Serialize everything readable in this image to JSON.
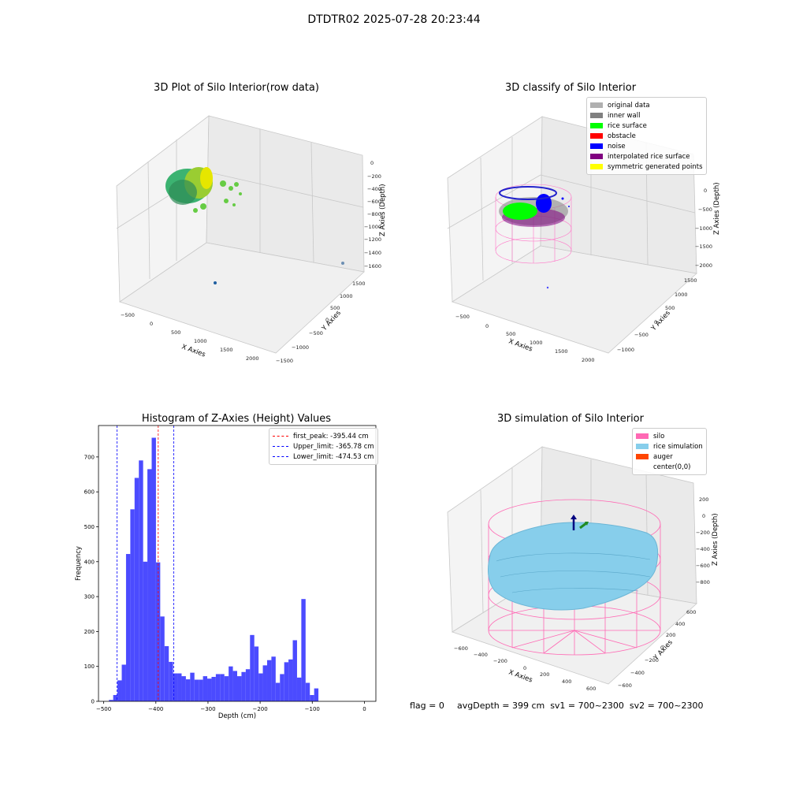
{
  "figure": {
    "suptitle": "DTDTR02 2025-07-28 20:23:44"
  },
  "panels": {
    "raw": {
      "title": "3D Plot of Silo Interior(row data)",
      "xlabel": "X Axies",
      "ylabel": "Y Axies",
      "zlabel": "Z Axies (Depth)",
      "xticks": [
        "−500",
        "0",
        "500",
        "1000",
        "1500",
        "2000"
      ],
      "yticks": [
        "−1500",
        "−1000",
        "−500",
        "0",
        "500",
        "1000",
        "1500"
      ],
      "zticks": [
        "0",
        "−200",
        "−400",
        "−600",
        "−800",
        "−1000",
        "−1200",
        "−1400",
        "−1600"
      ]
    },
    "classify": {
      "title": "3D classify of Silo Interior",
      "xlabel": "X Axies",
      "ylabel": "Y Axies",
      "zlabel": "Z Axies (Depth)",
      "xticks": [
        "−500",
        "0",
        "500",
        "1000",
        "1500",
        "2000"
      ],
      "yticks": [
        "−1000",
        "−500",
        "0",
        "500",
        "1000",
        "1500"
      ],
      "zticks": [
        "0",
        "−500",
        "−1000",
        "−1500",
        "−2000"
      ],
      "legend": [
        {
          "label": "original data",
          "color": "#b0b0b0"
        },
        {
          "label": "inner wall",
          "color": "#808080"
        },
        {
          "label": "rice surface",
          "color": "#00ff00"
        },
        {
          "label": "obstacle",
          "color": "#ff0000"
        },
        {
          "label": "noise",
          "color": "#0000ff"
        },
        {
          "label": "interpolated rice surface",
          "color": "#800080"
        },
        {
          "label": "symmetric generated points",
          "color": "#ffff00"
        }
      ]
    },
    "simulation": {
      "title": "3D simulation of Silo Interior",
      "xlabel": "X Axies",
      "ylabel": "Y Axies",
      "zlabel": "Z Axies (Depth)",
      "xticks": [
        "−600",
        "−400",
        "−200",
        "0",
        "200",
        "400",
        "600"
      ],
      "yticks": [
        "−600",
        "−400",
        "−200",
        "0",
        "200",
        "400",
        "600"
      ],
      "zticks": [
        "200",
        "0",
        "−200",
        "−400",
        "−600",
        "−800"
      ],
      "legend": [
        {
          "label": "silo",
          "color": "#ff69b4"
        },
        {
          "label": "rice simulation",
          "color": "#87ceeb"
        },
        {
          "label": "auger",
          "color": "#ff4500"
        },
        {
          "label": "center(0,0)",
          "color": ""
        }
      ]
    }
  },
  "chart_data": [
    {
      "type": "bar",
      "title": "Histogram of Z-Axies (Height) Values",
      "xlabel": "Depth (cm)",
      "ylabel": "Frequency",
      "xlim": [
        -510,
        22
      ],
      "ylim": [
        0,
        790
      ],
      "xticks": [
        -500,
        -400,
        -300,
        -200,
        -100,
        0
      ],
      "xtick_labels": [
        "−500",
        "−400",
        "−300",
        "−200",
        "−100",
        "0"
      ],
      "yticks": [
        0,
        100,
        200,
        300,
        400,
        500,
        600,
        700
      ],
      "bar_color": "#4b4bff",
      "bin_start": -490,
      "bin_width": 8.2,
      "values": [
        4,
        18,
        60,
        105,
        422,
        550,
        640,
        690,
        400,
        665,
        755,
        398,
        243,
        158,
        113,
        80,
        80,
        72,
        63,
        82,
        62,
        62,
        72,
        65,
        70,
        78,
        78,
        72,
        100,
        87,
        72,
        84,
        92,
        190,
        157,
        80,
        103,
        118,
        128,
        53,
        78,
        112,
        120,
        175,
        68,
        293,
        53,
        18,
        37
      ],
      "vlines": [
        {
          "label": "first_peak: -395.44 cm",
          "x": -395.44,
          "color": "#ff0000"
        },
        {
          "label": "Upper_limit: -365.78 cm",
          "x": -365.78,
          "color": "#0000ff"
        },
        {
          "label": "Lower_limit: -474.53 cm",
          "x": -474.53,
          "color": "#0000ff"
        }
      ],
      "legend_position": "top-right"
    }
  ],
  "status": {
    "flag": "flag = 0",
    "avg": "avgDepth = 399 cm  sv1 = 700~2300  sv2 = 700~2300"
  }
}
